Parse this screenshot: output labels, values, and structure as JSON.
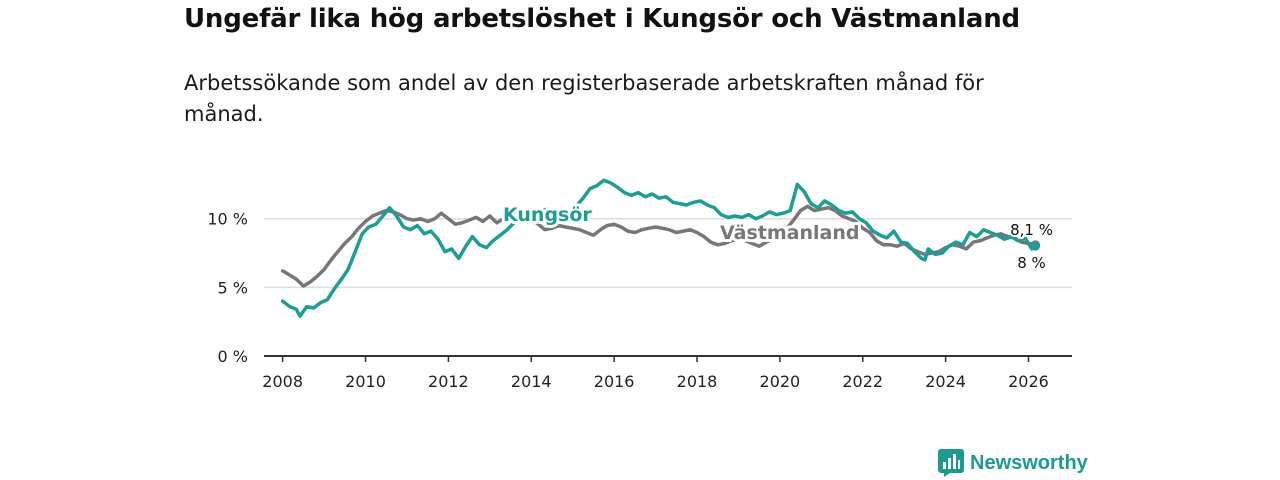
{
  "title": "Ungefär lika hög arbetslöshet i Kungsör och Västmanland",
  "subtitle": "Arbetssökande som andel av den registerbaserade arbetskraften månad för månad.",
  "brand": "Newsworthy",
  "colors": {
    "kungsor": "#1d9e94",
    "vastmanland": "#77777b",
    "axis": "#333333",
    "grid": "#dddddd",
    "brand": "#1d9a8e"
  },
  "chart_data": {
    "type": "line",
    "title": "Ungefär lika hög arbetslöshet i Kungsör och Västmanland",
    "xlabel": "",
    "ylabel": "",
    "xlim": [
      2007.55,
      2027.05
    ],
    "ylim": [
      0,
      11
    ],
    "xticks": [
      2008,
      2010,
      2012,
      2014,
      2016,
      2018,
      2020,
      2022,
      2024,
      2026
    ],
    "xtick_labels": [
      "2008",
      "2010",
      "2012",
      "2014",
      "2016",
      "2018",
      "2020",
      "2022",
      "2024",
      "2026"
    ],
    "yticks": [
      0,
      5,
      10
    ],
    "ytick_labels": [
      "0 %",
      "5 %",
      "10 %"
    ],
    "grid": "horizontal",
    "series": [
      {
        "name": "Västmanland",
        "label": "Västmanland",
        "end_label": "8,1 %",
        "points": [
          [
            2008.0,
            6.2
          ],
          [
            2008.17,
            5.9
          ],
          [
            2008.33,
            5.6
          ],
          [
            2008.5,
            5.1
          ],
          [
            2008.67,
            5.4
          ],
          [
            2008.83,
            5.8
          ],
          [
            2009.0,
            6.3
          ],
          [
            2009.17,
            7.0
          ],
          [
            2009.33,
            7.6
          ],
          [
            2009.5,
            8.2
          ],
          [
            2009.67,
            8.7
          ],
          [
            2009.83,
            9.3
          ],
          [
            2010.0,
            9.8
          ],
          [
            2010.17,
            10.2
          ],
          [
            2010.33,
            10.4
          ],
          [
            2010.5,
            10.6
          ],
          [
            2010.67,
            10.5
          ],
          [
            2010.83,
            10.3
          ],
          [
            2011.0,
            10.0
          ],
          [
            2011.17,
            9.9
          ],
          [
            2011.33,
            10.0
          ],
          [
            2011.5,
            9.8
          ],
          [
            2011.67,
            10.0
          ],
          [
            2011.83,
            10.4
          ],
          [
            2012.0,
            10.0
          ],
          [
            2012.17,
            9.6
          ],
          [
            2012.33,
            9.7
          ],
          [
            2012.5,
            9.9
          ],
          [
            2012.67,
            10.1
          ],
          [
            2012.83,
            9.8
          ],
          [
            2013.0,
            10.2
          ],
          [
            2013.17,
            9.7
          ],
          [
            2013.33,
            10.0
          ],
          [
            2013.5,
            10.2
          ],
          [
            2013.67,
            10.5
          ],
          [
            2013.83,
            10.2
          ],
          [
            2014.0,
            10.0
          ],
          [
            2014.17,
            9.6
          ],
          [
            2014.33,
            9.2
          ],
          [
            2014.5,
            9.3
          ],
          [
            2014.67,
            9.5
          ],
          [
            2014.83,
            9.4
          ],
          [
            2015.0,
            9.3
          ],
          [
            2015.17,
            9.2
          ],
          [
            2015.33,
            9.0
          ],
          [
            2015.5,
            8.8
          ],
          [
            2015.67,
            9.2
          ],
          [
            2015.83,
            9.5
          ],
          [
            2016.0,
            9.6
          ],
          [
            2016.17,
            9.4
          ],
          [
            2016.33,
            9.1
          ],
          [
            2016.5,
            9.0
          ],
          [
            2016.67,
            9.2
          ],
          [
            2016.83,
            9.3
          ],
          [
            2017.0,
            9.4
          ],
          [
            2017.17,
            9.3
          ],
          [
            2017.33,
            9.2
          ],
          [
            2017.5,
            9.0
          ],
          [
            2017.67,
            9.1
          ],
          [
            2017.83,
            9.2
          ],
          [
            2018.0,
            9.0
          ],
          [
            2018.17,
            8.7
          ],
          [
            2018.33,
            8.3
          ],
          [
            2018.5,
            8.1
          ],
          [
            2018.67,
            8.2
          ],
          [
            2018.83,
            8.4
          ],
          [
            2019.0,
            8.5
          ],
          [
            2019.17,
            8.4
          ],
          [
            2019.33,
            8.2
          ],
          [
            2019.5,
            8.0
          ],
          [
            2019.67,
            8.3
          ],
          [
            2019.83,
            8.5
          ],
          [
            2020.0,
            8.7
          ],
          [
            2020.17,
            9.3
          ],
          [
            2020.33,
            9.9
          ],
          [
            2020.5,
            10.6
          ],
          [
            2020.67,
            10.9
          ],
          [
            2020.83,
            10.6
          ],
          [
            2021.0,
            10.7
          ],
          [
            2021.17,
            10.8
          ],
          [
            2021.33,
            10.6
          ],
          [
            2021.5,
            10.2
          ],
          [
            2021.67,
            10.0
          ],
          [
            2021.83,
            9.8
          ],
          [
            2022.0,
            9.3
          ],
          [
            2022.17,
            9.0
          ],
          [
            2022.33,
            8.4
          ],
          [
            2022.5,
            8.1
          ],
          [
            2022.67,
            8.1
          ],
          [
            2022.83,
            8.0
          ],
          [
            2023.0,
            8.2
          ],
          [
            2023.17,
            7.8
          ],
          [
            2023.33,
            7.6
          ],
          [
            2023.5,
            7.4
          ],
          [
            2023.67,
            7.5
          ],
          [
            2023.83,
            7.6
          ],
          [
            2024.0,
            7.9
          ],
          [
            2024.17,
            8.1
          ],
          [
            2024.33,
            8.0
          ],
          [
            2024.5,
            7.8
          ],
          [
            2024.67,
            8.3
          ],
          [
            2024.83,
            8.4
          ],
          [
            2025.0,
            8.6
          ],
          [
            2025.17,
            8.8
          ],
          [
            2025.33,
            8.9
          ],
          [
            2025.5,
            8.7
          ],
          [
            2025.67,
            8.6
          ],
          [
            2025.83,
            8.3
          ],
          [
            2026.0,
            8.2
          ],
          [
            2026.17,
            8.1
          ]
        ]
      },
      {
        "name": "Kungsör",
        "label": "Kungsör",
        "end_label": "8 %",
        "points": [
          [
            2008.0,
            4.0
          ],
          [
            2008.17,
            3.6
          ],
          [
            2008.33,
            3.4
          ],
          [
            2008.42,
            2.9
          ],
          [
            2008.58,
            3.6
          ],
          [
            2008.75,
            3.5
          ],
          [
            2008.92,
            3.9
          ],
          [
            2009.08,
            4.1
          ],
          [
            2009.25,
            4.9
          ],
          [
            2009.42,
            5.6
          ],
          [
            2009.58,
            6.3
          ],
          [
            2009.75,
            7.6
          ],
          [
            2009.92,
            8.9
          ],
          [
            2010.08,
            9.4
          ],
          [
            2010.25,
            9.6
          ],
          [
            2010.42,
            10.2
          ],
          [
            2010.58,
            10.8
          ],
          [
            2010.75,
            10.2
          ],
          [
            2010.92,
            9.4
          ],
          [
            2011.08,
            9.2
          ],
          [
            2011.25,
            9.5
          ],
          [
            2011.42,
            8.9
          ],
          [
            2011.58,
            9.1
          ],
          [
            2011.75,
            8.5
          ],
          [
            2011.92,
            7.6
          ],
          [
            2012.08,
            7.8
          ],
          [
            2012.25,
            7.1
          ],
          [
            2012.42,
            8.0
          ],
          [
            2012.58,
            8.7
          ],
          [
            2012.75,
            8.1
          ],
          [
            2012.92,
            7.9
          ],
          [
            2013.08,
            8.4
          ],
          [
            2013.25,
            8.8
          ],
          [
            2013.42,
            9.2
          ],
          [
            2013.58,
            9.7
          ],
          [
            2013.75,
            10.2
          ],
          [
            2013.92,
            10.4
          ],
          [
            2014.08,
            10.0
          ],
          [
            2014.25,
            10.6
          ],
          [
            2014.42,
            10.7
          ],
          [
            2014.58,
            10.2
          ],
          [
            2014.75,
            10.5
          ],
          [
            2014.92,
            10.4
          ],
          [
            2015.08,
            10.9
          ],
          [
            2015.25,
            11.5
          ],
          [
            2015.42,
            12.2
          ],
          [
            2015.58,
            12.4
          ],
          [
            2015.75,
            12.8
          ],
          [
            2015.92,
            12.6
          ],
          [
            2016.08,
            12.3
          ],
          [
            2016.25,
            11.9
          ],
          [
            2016.42,
            11.7
          ],
          [
            2016.58,
            11.9
          ],
          [
            2016.75,
            11.6
          ],
          [
            2016.92,
            11.8
          ],
          [
            2017.08,
            11.5
          ],
          [
            2017.25,
            11.6
          ],
          [
            2017.42,
            11.2
          ],
          [
            2017.58,
            11.1
          ],
          [
            2017.75,
            11.0
          ],
          [
            2017.92,
            11.2
          ],
          [
            2018.08,
            11.3
          ],
          [
            2018.25,
            11.0
          ],
          [
            2018.42,
            10.8
          ],
          [
            2018.58,
            10.3
          ],
          [
            2018.75,
            10.1
          ],
          [
            2018.92,
            10.2
          ],
          [
            2019.08,
            10.1
          ],
          [
            2019.25,
            10.3
          ],
          [
            2019.42,
            10.0
          ],
          [
            2019.58,
            10.2
          ],
          [
            2019.75,
            10.5
          ],
          [
            2019.92,
            10.3
          ],
          [
            2020.08,
            10.4
          ],
          [
            2020.25,
            10.6
          ],
          [
            2020.42,
            12.5
          ],
          [
            2020.58,
            12.0
          ],
          [
            2020.75,
            11.1
          ],
          [
            2020.92,
            10.8
          ],
          [
            2021.08,
            11.3
          ],
          [
            2021.25,
            11.0
          ],
          [
            2021.42,
            10.6
          ],
          [
            2021.58,
            10.4
          ],
          [
            2021.75,
            10.5
          ],
          [
            2021.92,
            10.0
          ],
          [
            2022.08,
            9.7
          ],
          [
            2022.25,
            9.1
          ],
          [
            2022.42,
            8.8
          ],
          [
            2022.58,
            8.6
          ],
          [
            2022.75,
            9.1
          ],
          [
            2022.92,
            8.3
          ],
          [
            2023.08,
            8.2
          ],
          [
            2023.25,
            7.6
          ],
          [
            2023.42,
            7.1
          ],
          [
            2023.5,
            7.0
          ],
          [
            2023.58,
            7.8
          ],
          [
            2023.75,
            7.4
          ],
          [
            2023.92,
            7.5
          ],
          [
            2024.08,
            8.0
          ],
          [
            2024.25,
            8.3
          ],
          [
            2024.42,
            8.1
          ],
          [
            2024.58,
            9.0
          ],
          [
            2024.75,
            8.7
          ],
          [
            2024.92,
            9.2
          ],
          [
            2025.08,
            9.0
          ],
          [
            2025.25,
            8.8
          ],
          [
            2025.42,
            8.5
          ],
          [
            2025.58,
            8.7
          ],
          [
            2025.75,
            8.4
          ],
          [
            2025.92,
            8.6
          ],
          [
            2026.08,
            7.8
          ],
          [
            2026.17,
            8.0
          ]
        ]
      }
    ]
  }
}
